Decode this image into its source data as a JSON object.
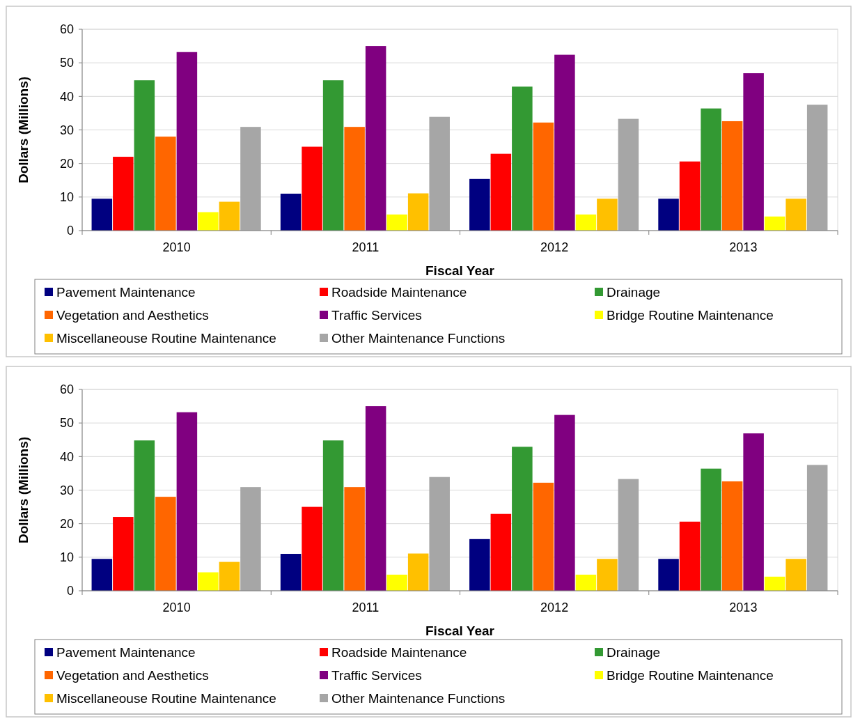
{
  "chart_data": [
    {
      "type": "bar",
      "xlabel": "Fiscal Year",
      "ylabel": "Dollars (Millions)",
      "categories": [
        "2010",
        "2011",
        "2012",
        "2013"
      ],
      "ylim": [
        0,
        60
      ],
      "yticks": [
        0,
        10,
        20,
        30,
        40,
        50,
        60
      ],
      "grid": "y",
      "legend": "bottom",
      "series": [
        {
          "name": "Pavement Maintenance",
          "color": "#000080",
          "values": [
            9.5,
            11,
            15.4,
            9.5
          ]
        },
        {
          "name": "Roadside Maintenance",
          "color": "#ff0000",
          "values": [
            22,
            25,
            22.9,
            20.6
          ]
        },
        {
          "name": "Drainage",
          "color": "#339933",
          "values": [
            44.8,
            44.8,
            42.9,
            36.4
          ]
        },
        {
          "name": "Vegetation and Aesthetics",
          "color": "#ff6600",
          "values": [
            28,
            30.9,
            32.2,
            32.6
          ]
        },
        {
          "name": "Traffic Services",
          "color": "#800080",
          "values": [
            53.2,
            55,
            52.4,
            46.9
          ]
        },
        {
          "name": "Bridge Routine Maintenance",
          "color": "#ffff00",
          "values": [
            5.5,
            4.8,
            4.8,
            4.2
          ]
        },
        {
          "name": "Miscellaneouse Routine Maintenance",
          "color": "#ffc000",
          "values": [
            8.6,
            11.1,
            9.5,
            9.5
          ]
        },
        {
          "name": "Other Maintenance Functions",
          "color": "#a6a6a6",
          "values": [
            30.9,
            33.9,
            33.3,
            37.5
          ]
        }
      ]
    },
    {
      "type": "bar",
      "xlabel": "Fiscal Year",
      "ylabel": "Dollars (Millions)",
      "categories": [
        "2010",
        "2011",
        "2012",
        "2013"
      ],
      "ylim": [
        0,
        60
      ],
      "yticks": [
        0,
        10,
        20,
        30,
        40,
        50,
        60
      ],
      "grid": "y",
      "legend": "bottom",
      "series": [
        {
          "name": "Pavement Maintenance",
          "color": "#000080",
          "values": [
            9.5,
            11,
            15.4,
            9.5
          ]
        },
        {
          "name": "Roadside Maintenance",
          "color": "#ff0000",
          "values": [
            22,
            25,
            22.9,
            20.6
          ]
        },
        {
          "name": "Drainage",
          "color": "#339933",
          "values": [
            44.8,
            44.8,
            42.9,
            36.4
          ]
        },
        {
          "name": "Vegetation and Aesthetics",
          "color": "#ff6600",
          "values": [
            28,
            30.9,
            32.2,
            32.6
          ]
        },
        {
          "name": "Traffic Services",
          "color": "#800080",
          "values": [
            53.2,
            55,
            52.4,
            46.9
          ]
        },
        {
          "name": "Bridge Routine Maintenance",
          "color": "#ffff00",
          "values": [
            5.5,
            4.8,
            4.8,
            4.2
          ]
        },
        {
          "name": "Miscellaneouse Routine Maintenance",
          "color": "#ffc000",
          "values": [
            8.6,
            11.1,
            9.5,
            9.5
          ]
        },
        {
          "name": "Other Maintenance Functions",
          "color": "#a6a6a6",
          "values": [
            30.9,
            33.9,
            33.3,
            37.5
          ]
        }
      ]
    }
  ]
}
